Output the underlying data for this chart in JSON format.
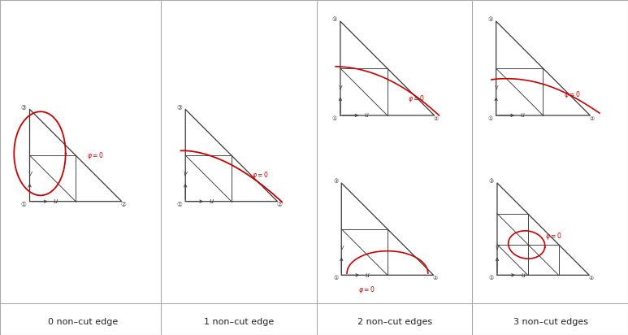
{
  "panel_labels": [
    "0 non–cut edge",
    "1 non–cut edge",
    "2 non–cut edges",
    "3 non–cut edges"
  ],
  "bg_color": "#ffffff",
  "line_color": "#3a3a3a",
  "red_color": "#cc0000",
  "border_color": "#aaaaaa",
  "divider_color": "#aaaaaa"
}
